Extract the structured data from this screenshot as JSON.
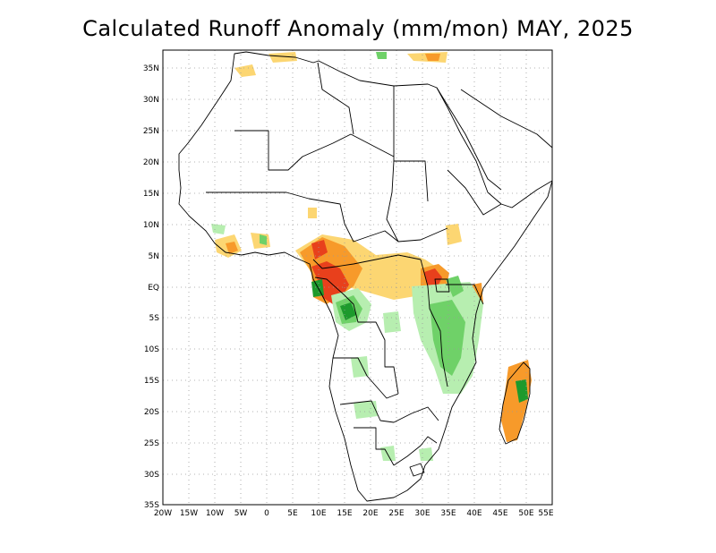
{
  "title": "Calculated Runoff Anomaly (mm/mon) MAY, 2025",
  "map": {
    "region": "Africa",
    "projection": "lat-lon",
    "lon_range": [
      -20,
      55
    ],
    "lat_range": [
      -35,
      38
    ],
    "lon_ticks": [
      "20W",
      "15W",
      "10W",
      "5W",
      "0",
      "5E",
      "10E",
      "15E",
      "20E",
      "25E",
      "30E",
      "35E",
      "40E",
      "45E",
      "50E",
      "55E"
    ],
    "lat_ticks": [
      "35N",
      "30N",
      "25N",
      "20N",
      "15N",
      "10N",
      "5N",
      "EQ",
      "5S",
      "10S",
      "15S",
      "20S",
      "25S",
      "30S",
      "35S"
    ],
    "colors": {
      "dry_strong": "#e8401c",
      "dry_mid": "#f79a2a",
      "dry_light": "#fcd672",
      "wet_light": "#b7eeb0",
      "wet_mid": "#6fd168",
      "wet_strong": "#1d9a2c",
      "coastline": "#000000",
      "grid": "#9a9a9a"
    }
  }
}
